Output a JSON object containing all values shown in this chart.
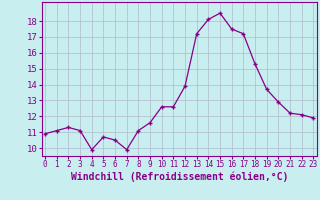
{
  "x": [
    0,
    1,
    2,
    3,
    4,
    5,
    6,
    7,
    8,
    9,
    10,
    11,
    12,
    13,
    14,
    15,
    16,
    17,
    18,
    19,
    20,
    21,
    22,
    23
  ],
  "y": [
    10.9,
    11.1,
    11.3,
    11.1,
    9.9,
    10.7,
    10.5,
    9.9,
    11.1,
    11.6,
    12.6,
    12.6,
    13.9,
    17.2,
    18.1,
    18.5,
    17.5,
    17.2,
    15.3,
    13.7,
    12.9,
    12.2,
    12.1,
    11.9
  ],
  "line_color": "#880088",
  "marker": "+",
  "marker_size": 3,
  "bg_color": "#c8eef0",
  "grid_color": "#b0b8cc",
  "xlabel": "Windchill (Refroidissement éolien,°C)",
  "xlabel_color": "#880088",
  "tick_color": "#880088",
  "ylim": [
    9.5,
    19.2
  ],
  "yticks": [
    10,
    11,
    12,
    13,
    14,
    15,
    16,
    17,
    18
  ],
  "xticks": [
    0,
    1,
    2,
    3,
    4,
    5,
    6,
    7,
    8,
    9,
    10,
    11,
    12,
    13,
    14,
    15,
    16,
    17,
    18,
    19,
    20,
    21,
    22,
    23
  ],
  "xlim": [
    -0.3,
    23.3
  ],
  "spine_color": "#880088",
  "xlabel_fontsize": 7.0,
  "ytick_fontsize": 6.5,
  "xtick_fontsize": 5.5
}
